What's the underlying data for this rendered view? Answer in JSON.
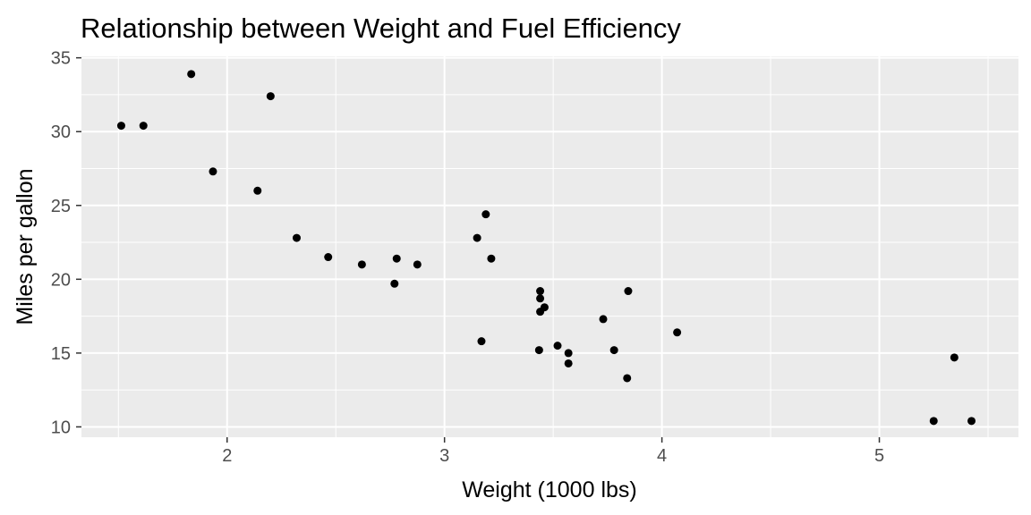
{
  "chart_data": {
    "type": "scatter",
    "title": "Relationship between Weight and Fuel Efficiency",
    "xlabel": "Weight (1000 lbs)",
    "ylabel": "Miles per gallon",
    "xlim": [
      1.33,
      5.64
    ],
    "ylim": [
      9.3,
      35.1
    ],
    "x_ticks": [
      2,
      3,
      4,
      5
    ],
    "x_tick_labels": [
      "2",
      "3",
      "4",
      "5"
    ],
    "y_ticks": [
      10,
      15,
      20,
      25,
      30,
      35
    ],
    "y_tick_labels": [
      "10",
      "15",
      "20",
      "25",
      "30",
      "35"
    ],
    "grid": true,
    "background": "#ebebeb",
    "point_color": "#000000",
    "points": [
      {
        "x": 1.513,
        "y": 30.4
      },
      {
        "x": 1.615,
        "y": 30.4
      },
      {
        "x": 1.835,
        "y": 33.9
      },
      {
        "x": 1.935,
        "y": 27.3
      },
      {
        "x": 2.14,
        "y": 26.0
      },
      {
        "x": 2.2,
        "y": 32.4
      },
      {
        "x": 2.32,
        "y": 22.8
      },
      {
        "x": 2.465,
        "y": 21.5
      },
      {
        "x": 2.62,
        "y": 21.0
      },
      {
        "x": 2.77,
        "y": 19.7
      },
      {
        "x": 2.78,
        "y": 21.4
      },
      {
        "x": 2.875,
        "y": 21.0
      },
      {
        "x": 3.15,
        "y": 22.8
      },
      {
        "x": 3.17,
        "y": 15.8
      },
      {
        "x": 3.19,
        "y": 24.4
      },
      {
        "x": 3.215,
        "y": 21.4
      },
      {
        "x": 3.435,
        "y": 15.2
      },
      {
        "x": 3.44,
        "y": 18.7
      },
      {
        "x": 3.44,
        "y": 19.2
      },
      {
        "x": 3.44,
        "y": 17.8
      },
      {
        "x": 3.46,
        "y": 18.1
      },
      {
        "x": 3.52,
        "y": 15.5
      },
      {
        "x": 3.57,
        "y": 14.3
      },
      {
        "x": 3.57,
        "y": 15.0
      },
      {
        "x": 3.73,
        "y": 17.3
      },
      {
        "x": 3.78,
        "y": 15.2
      },
      {
        "x": 3.84,
        "y": 13.3
      },
      {
        "x": 3.845,
        "y": 19.2
      },
      {
        "x": 4.07,
        "y": 16.4
      },
      {
        "x": 5.25,
        "y": 10.4
      },
      {
        "x": 5.345,
        "y": 14.7
      },
      {
        "x": 5.424,
        "y": 10.4
      }
    ]
  }
}
